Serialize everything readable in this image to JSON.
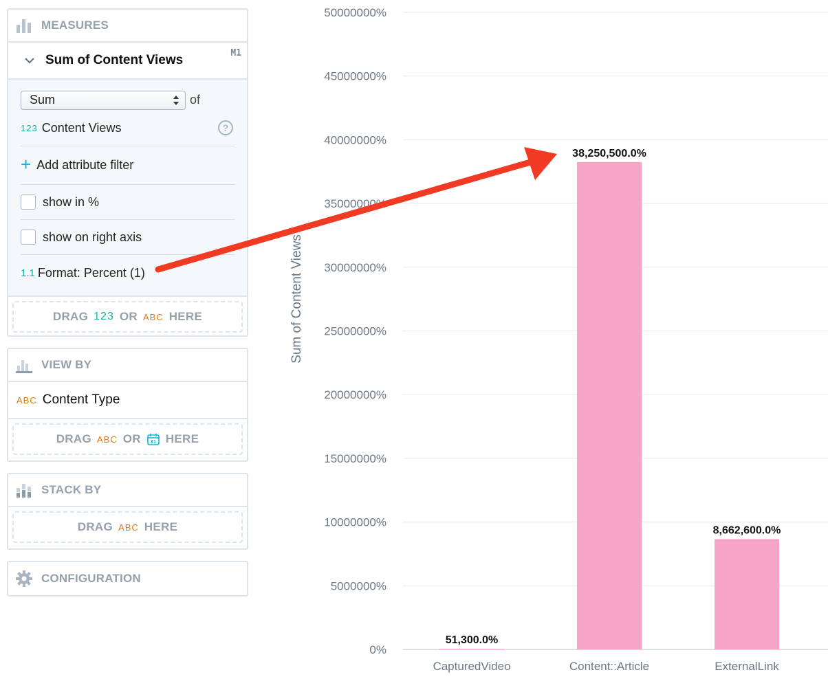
{
  "measures": {
    "header": "MEASURES",
    "item": {
      "title": "Sum of Content Views",
      "tag": "M1",
      "aggregation": "Sum",
      "of_label": "of",
      "field_badge": "123",
      "field_name": "Content Views",
      "add_filter": "Add attribute filter",
      "show_percent": "show in %",
      "show_right_axis": "show on right axis",
      "format_badge": "1.1",
      "format_label": "Format: Percent (1)"
    },
    "drop": {
      "drag": "DRAG",
      "badge_num": "123",
      "or": "OR",
      "badge_abc": "ABC",
      "here": "HERE"
    }
  },
  "view_by": {
    "header": "VIEW BY",
    "item_badge": "ABC",
    "item_label": "Content Type",
    "drop": {
      "drag": "DRAG",
      "badge_abc": "ABC",
      "or": "OR",
      "here": "HERE"
    }
  },
  "stack_by": {
    "header": "STACK BY",
    "drop": {
      "drag": "DRAG",
      "badge_abc": "ABC",
      "here": "HERE"
    }
  },
  "configuration": {
    "header": "CONFIGURATION"
  },
  "colors": {
    "bar": "#f5a5c6",
    "arrow": "#f03a24",
    "accent_num": "#13b5a3",
    "accent_abc": "#e8760c"
  },
  "chart_data": {
    "type": "bar",
    "ylabel": "Sum of Content Views",
    "categories": [
      "CapturedVideo",
      "Content::Article",
      "ExternalLink"
    ],
    "values": [
      513,
      382505,
      86626
    ],
    "data_labels": [
      "51,300.0%",
      "38,250,500.0%",
      "8,662,600.0%"
    ],
    "ylim": [
      0,
      500000
    ],
    "yticks": [
      "0%",
      "5000000%",
      "10000000%",
      "15000000%",
      "20000000%",
      "25000000%",
      "30000000%",
      "35000000%",
      "40000000%",
      "45000000%",
      "50000000%"
    ],
    "grid": true
  }
}
